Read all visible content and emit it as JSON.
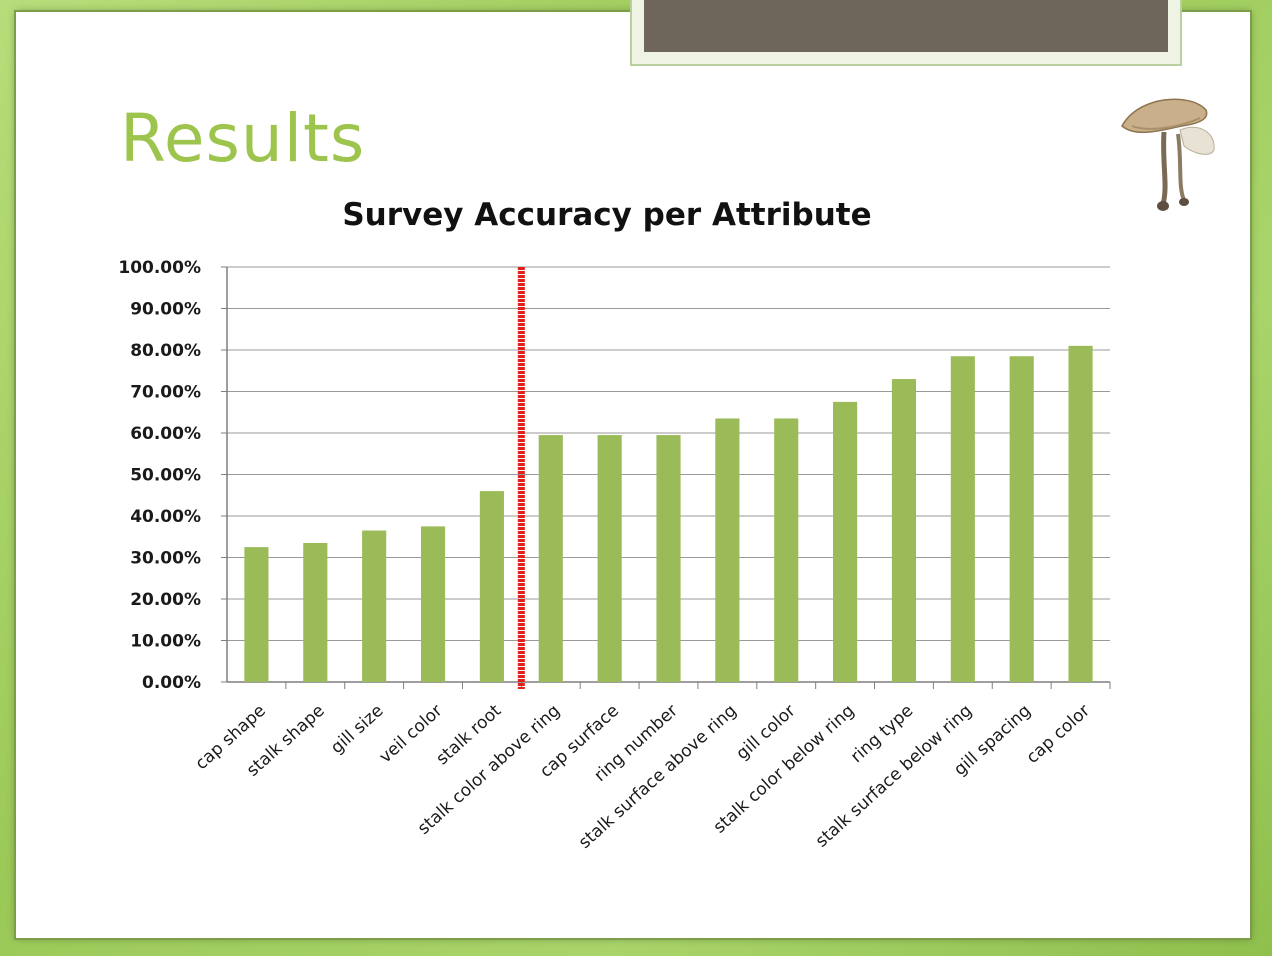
{
  "slide": {
    "title": "Results"
  },
  "icons": {
    "decoration": "mushroom-icon"
  },
  "colors": {
    "frame": "#9fcd5c",
    "title": "#9dc54e",
    "bar": "#9bbb59",
    "divider": "#e0201b",
    "header_bar": "#6e6658"
  },
  "chart_data": {
    "type": "bar",
    "title": "Survey Accuracy per Attribute",
    "xlabel": "",
    "ylabel": "",
    "ylim": [
      0,
      100
    ],
    "yticks": [
      "0.00%",
      "10.00%",
      "20.00%",
      "30.00%",
      "40.00%",
      "50.00%",
      "60.00%",
      "70.00%",
      "80.00%",
      "90.00%",
      "100.00%"
    ],
    "grid": true,
    "legend": "none",
    "categories": [
      "cap shape",
      "stalk shape",
      "gill size",
      "veil color",
      "stalk root",
      "stalk color above ring",
      "cap surface",
      "ring number",
      "stalk surface above ring",
      "gill color",
      "stalk color below ring",
      "ring type",
      "stalk surface below ring",
      "gill spacing",
      "cap color"
    ],
    "values": [
      32.5,
      33.5,
      36.5,
      37.5,
      46,
      59.5,
      59.5,
      59.5,
      63.5,
      63.5,
      67.5,
      73,
      78.5,
      78.5,
      81
    ],
    "divider_after_category_index": 4
  }
}
